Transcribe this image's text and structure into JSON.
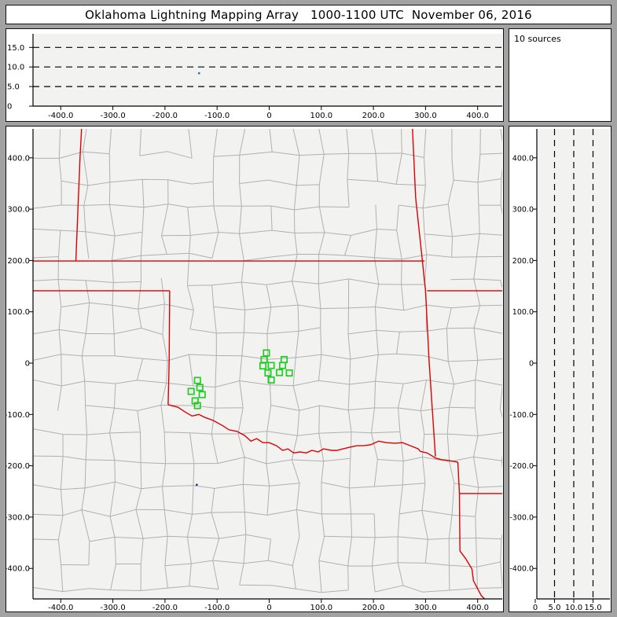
{
  "title": "Oklahoma Lightning Mapping Array   1000-1100 UTC  November 06, 2016",
  "sources_label": "10 sources",
  "colors": {
    "frame_bg": "#a2a2a2",
    "panel_bg": "#ffffff",
    "plot_bg": "#f2f2f1",
    "axis": "#000000",
    "dashed_line": "#000000",
    "county_line": "#b0b0b0",
    "state_border": "#dd0000",
    "station_marker": "#22cc22",
    "source_dot_top": "#1874cd",
    "source_dot_map": "#4400aa"
  },
  "chart_data": [
    {
      "id": "alt_vs_ew",
      "type": "scatter",
      "title": "",
      "x_ticks": [
        {
          "v": -400,
          "label": "-400.0"
        },
        {
          "v": -300,
          "label": "-300.0"
        },
        {
          "v": -200,
          "label": "-200.0"
        },
        {
          "v": -100,
          "label": "-100.0"
        },
        {
          "v": 0,
          "label": "0"
        },
        {
          "v": 100,
          "label": "100.0"
        },
        {
          "v": 200,
          "label": "200.0"
        },
        {
          "v": 300,
          "label": "300.0"
        },
        {
          "v": 400,
          "label": "400.0"
        }
      ],
      "y_ticks": [
        {
          "v": 15,
          "label": "15.0"
        },
        {
          "v": 10,
          "label": "10.0"
        },
        {
          "v": 5,
          "label": "5.0"
        },
        {
          "v": 0,
          "label": "0"
        }
      ],
      "dashed_alt_lines_km": [
        5,
        10,
        15
      ],
      "x_range_km": [
        -455,
        449
      ],
      "alt_range_km": [
        0,
        19
      ],
      "points": [
        {
          "x_km": -134.6,
          "alt_km": 8.4
        }
      ]
    },
    {
      "id": "plan_view",
      "type": "scatter",
      "title": "",
      "x_ticks": [
        {
          "v": -400,
          "label": "-400.0"
        },
        {
          "v": -300,
          "label": "-300.0"
        },
        {
          "v": -200,
          "label": "-200.0"
        },
        {
          "v": -100,
          "label": "-100.0"
        },
        {
          "v": 0,
          "label": "0"
        },
        {
          "v": 100,
          "label": "100.0"
        },
        {
          "v": 200,
          "label": "200.0"
        },
        {
          "v": 300,
          "label": "300.0"
        },
        {
          "v": 400,
          "label": "400.0"
        }
      ],
      "y_ticks": [
        {
          "v": 400,
          "label": "400.0"
        },
        {
          "v": 300,
          "label": "300.0"
        },
        {
          "v": 200,
          "label": "200.0"
        },
        {
          "v": 100,
          "label": "100.0"
        },
        {
          "v": 0,
          "label": "0"
        },
        {
          "v": -100,
          "label": "-100.0"
        },
        {
          "v": -200,
          "label": "-200.0"
        },
        {
          "v": -300,
          "label": "-300.0"
        },
        {
          "v": -400,
          "label": "-400.0"
        }
      ],
      "x_range_km": [
        -455,
        449
      ],
      "y_range_km": [
        -460,
        457
      ],
      "stations_km": [
        [
          -5.3,
          19.9
        ],
        [
          -9.8,
          6.9
        ],
        [
          28.7,
          6.9
        ],
        [
          -12.1,
          -5.4
        ],
        [
          3.8,
          -4.6
        ],
        [
          25.7,
          -4.6
        ],
        [
          -2.3,
          -19.1
        ],
        [
          19.7,
          -18.4
        ],
        [
          38.6,
          -19.1
        ],
        [
          3.8,
          -32.9
        ],
        [
          -137.7,
          -33.7
        ],
        [
          -133.1,
          -47.5
        ],
        [
          -149.8,
          -55.1
        ],
        [
          -128.6,
          -61.3
        ],
        [
          -142.2,
          -73.5
        ],
        [
          -137.7,
          -82.7
        ]
      ],
      "points": [
        {
          "x_km": -139,
          "y_km": -237
        }
      ],
      "state_borders_km": [
        [
          [
            -360,
            457
          ],
          [
            -363,
            400
          ],
          [
            -371,
            199
          ]
        ],
        [
          [
            -454,
            199
          ],
          [
            298,
            199
          ]
        ],
        [
          [
            275,
            457
          ],
          [
            281,
            323
          ],
          [
            294,
            199
          ]
        ],
        [
          [
            294,
            199
          ],
          [
            300,
            141
          ],
          [
            307,
            2
          ],
          [
            313,
            -90
          ],
          [
            319,
            -182
          ]
        ],
        [
          [
            303,
            141
          ],
          [
            449,
            141
          ]
        ],
        [
          [
            -454,
            141
          ],
          [
            -191,
            141
          ]
        ],
        [
          [
            -191,
            141
          ],
          [
            -192,
            2
          ],
          [
            -194,
            -81
          ]
        ],
        [
          [
            -194,
            -81
          ],
          [
            -175,
            -86
          ],
          [
            -160,
            -96
          ],
          [
            -148,
            -103
          ],
          [
            -135,
            -100
          ],
          [
            -123,
            -106
          ],
          [
            -107,
            -112
          ],
          [
            -89,
            -122
          ],
          [
            -77,
            -130
          ],
          [
            -62,
            -133
          ],
          [
            -47,
            -141
          ],
          [
            -35,
            -152
          ],
          [
            -24,
            -147
          ],
          [
            -12,
            -155
          ],
          [
            0,
            -155
          ],
          [
            14,
            -161
          ],
          [
            26,
            -170
          ],
          [
            36,
            -167
          ],
          [
            47,
            -175
          ],
          [
            59,
            -173
          ],
          [
            71,
            -175
          ],
          [
            82,
            -170
          ],
          [
            94,
            -173
          ],
          [
            104,
            -167
          ],
          [
            120,
            -170
          ],
          [
            130,
            -170
          ],
          [
            142,
            -167
          ],
          [
            154,
            -164
          ],
          [
            168,
            -161
          ],
          [
            180,
            -161
          ],
          [
            195,
            -159
          ],
          [
            210,
            -152
          ],
          [
            225,
            -155
          ],
          [
            241,
            -156
          ],
          [
            256,
            -155
          ],
          [
            271,
            -161
          ],
          [
            286,
            -167
          ],
          [
            290,
            -172
          ],
          [
            303,
            -175
          ],
          [
            313,
            -181
          ],
          [
            319,
            -185
          ],
          [
            331,
            -188
          ],
          [
            346,
            -190
          ],
          [
            362,
            -193
          ]
        ],
        [
          [
            362,
            -193
          ],
          [
            363,
            -213
          ],
          [
            365,
            -254
          ]
        ],
        [
          [
            365,
            -254
          ],
          [
            449,
            -254
          ]
        ],
        [
          [
            365,
            -254
          ],
          [
            366,
            -366
          ],
          [
            377,
            -381
          ],
          [
            389,
            -401
          ],
          [
            392,
            -424
          ],
          [
            407,
            -453
          ],
          [
            413,
            -459
          ]
        ]
      ]
    },
    {
      "id": "alt_vs_ns",
      "type": "scatter",
      "title": "",
      "x_ticks": [
        {
          "v": 0,
          "label": "0"
        },
        {
          "v": 5,
          "label": "5.0"
        },
        {
          "v": 10,
          "label": "10.0"
        },
        {
          "v": 15,
          "label": "15.0"
        }
      ],
      "y_ticks": [
        {
          "v": 400,
          "label": "400.0"
        },
        {
          "v": 300,
          "label": "300.0"
        },
        {
          "v": 200,
          "label": "200.0"
        },
        {
          "v": 100,
          "label": "100.0"
        },
        {
          "v": 0,
          "label": "0"
        },
        {
          "v": -100,
          "label": "-100.0"
        },
        {
          "v": -200,
          "label": "-200.0"
        },
        {
          "v": -300,
          "label": "-300.0"
        },
        {
          "v": -400,
          "label": "-400.0"
        }
      ],
      "dashed_alt_lines_km": [
        5,
        10,
        15
      ],
      "alt_range_km": [
        0,
        19
      ],
      "y_range_km": [
        -460,
        457
      ],
      "points": []
    }
  ]
}
